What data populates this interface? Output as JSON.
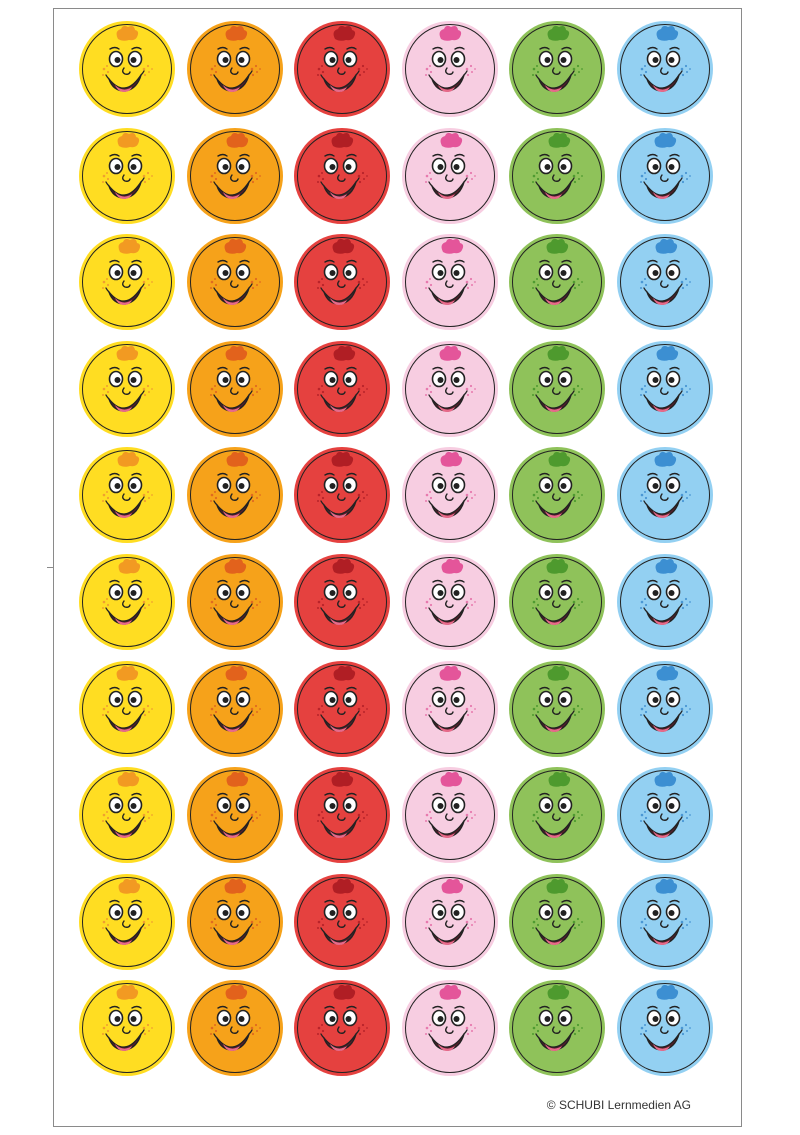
{
  "sheet": {
    "copyright": "© SCHUBI Lernmedien AG",
    "rows": 10,
    "columns": [
      {
        "name": "yellow",
        "fill": "#ffdd22",
        "ring": "#ffffff",
        "accent": "#f29a22",
        "dots": "#f0a030"
      },
      {
        "name": "orange",
        "fill": "#f6a21a",
        "ring": "#ffffff",
        "accent": "#e2621c",
        "dots": "#e06a20"
      },
      {
        "name": "red",
        "fill": "#e5413f",
        "ring": "#ffffff",
        "accent": "#b01e24",
        "dots": "#b8232a"
      },
      {
        "name": "pink",
        "fill": "#f7cde1",
        "ring": "#ffffff",
        "accent": "#e4559a",
        "dots": "#e77aae"
      },
      {
        "name": "green",
        "fill": "#8fc25a",
        "ring": "#ffffff",
        "accent": "#4e9a2e",
        "dots": "#4f9b31"
      },
      {
        "name": "blue",
        "fill": "#93d0f2",
        "ring": "#ffffff",
        "accent": "#3c8fd2",
        "dots": "#4a97d4"
      }
    ]
  }
}
